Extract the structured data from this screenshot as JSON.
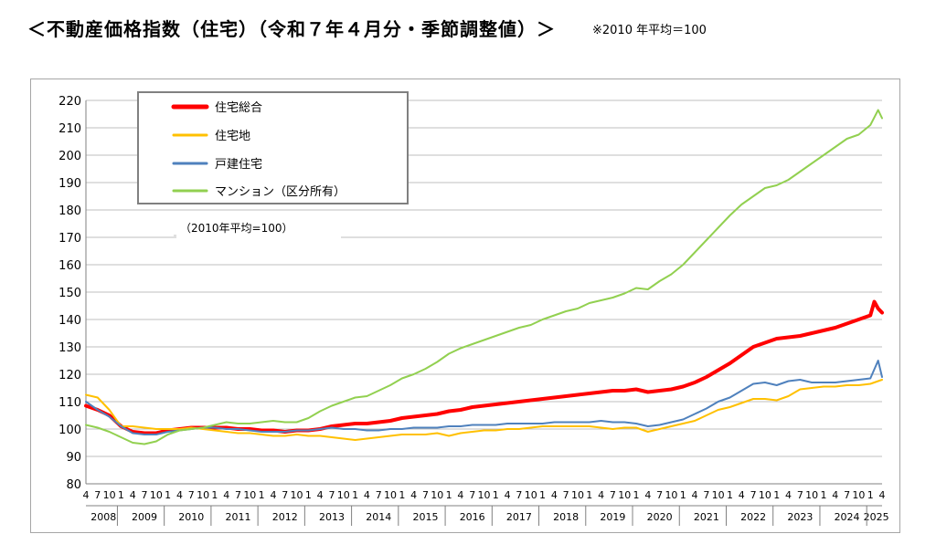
{
  "header": {
    "title": "＜不動産価格指数（住宅）（令和７年４月分・季節調整値）＞",
    "note": "※2010 年平均＝100"
  },
  "colors": {
    "total": "#ff0000",
    "land": "#ffc000",
    "detached": "#4f81bd",
    "condo": "#92d050",
    "grid": "#bfbfbf",
    "axis": "#808080"
  },
  "chart_data": {
    "type": "line",
    "title": "",
    "xlabel": "",
    "ylabel": "",
    "annotation": "（2010年平均=100）",
    "ylim": [
      80,
      220
    ],
    "yticks": [
      80,
      90,
      100,
      110,
      120,
      130,
      140,
      150,
      160,
      170,
      180,
      190,
      200,
      210,
      220
    ],
    "grid": "horizontal",
    "legend_position": "top-left",
    "x_start": "2008-04",
    "x_end": "2025-04",
    "month_tick_labels": [
      "4",
      "7",
      "10",
      "1"
    ],
    "years": [
      "2008",
      "2009",
      "2010",
      "2011",
      "2012",
      "2013",
      "2014",
      "2015",
      "2016",
      "2017",
      "2018",
      "2019",
      "2020",
      "2021",
      "2022",
      "2023",
      "2024",
      "2025"
    ],
    "series": [
      {
        "name": "住宅総合",
        "color_key": "total",
        "width": 4,
        "points": [
          [
            "2008-04",
            108.5
          ],
          [
            "2008-07",
            107
          ],
          [
            "2008-10",
            105
          ],
          [
            "2009-01",
            101
          ],
          [
            "2009-04",
            99
          ],
          [
            "2009-07",
            98.5
          ],
          [
            "2009-10",
            98.5
          ],
          [
            "2010-01",
            99.5
          ],
          [
            "2010-04",
            100
          ],
          [
            "2010-07",
            100.5
          ],
          [
            "2010-10",
            100.5
          ],
          [
            "2011-01",
            100.5
          ],
          [
            "2011-04",
            100.5
          ],
          [
            "2011-07",
            100
          ],
          [
            "2011-10",
            100
          ],
          [
            "2012-01",
            99.5
          ],
          [
            "2012-04",
            99.5
          ],
          [
            "2012-07",
            99
          ],
          [
            "2012-10",
            99.5
          ],
          [
            "2013-01",
            99.5
          ],
          [
            "2013-04",
            100
          ],
          [
            "2013-07",
            101
          ],
          [
            "2013-10",
            101.5
          ],
          [
            "2014-01",
            102
          ],
          [
            "2014-04",
            102
          ],
          [
            "2014-07",
            102.5
          ],
          [
            "2014-10",
            103
          ],
          [
            "2015-01",
            104
          ],
          [
            "2015-04",
            104.5
          ],
          [
            "2015-07",
            105
          ],
          [
            "2015-10",
            105.5
          ],
          [
            "2016-01",
            106.5
          ],
          [
            "2016-04",
            107
          ],
          [
            "2016-07",
            108
          ],
          [
            "2016-10",
            108.5
          ],
          [
            "2017-01",
            109
          ],
          [
            "2017-04",
            109.5
          ],
          [
            "2017-07",
            110
          ],
          [
            "2017-10",
            110.5
          ],
          [
            "2018-01",
            111
          ],
          [
            "2018-04",
            111.5
          ],
          [
            "2018-07",
            112
          ],
          [
            "2018-10",
            112.5
          ],
          [
            "2019-01",
            113
          ],
          [
            "2019-04",
            113.5
          ],
          [
            "2019-07",
            114
          ],
          [
            "2019-10",
            114
          ],
          [
            "2020-01",
            114.5
          ],
          [
            "2020-04",
            113.5
          ],
          [
            "2020-07",
            114
          ],
          [
            "2020-10",
            114.5
          ],
          [
            "2021-01",
            115.5
          ],
          [
            "2021-04",
            117
          ],
          [
            "2021-07",
            119
          ],
          [
            "2021-10",
            121.5
          ],
          [
            "2022-01",
            124
          ],
          [
            "2022-04",
            127
          ],
          [
            "2022-07",
            130
          ],
          [
            "2022-10",
            131.5
          ],
          [
            "2023-01",
            133
          ],
          [
            "2023-04",
            133.5
          ],
          [
            "2023-07",
            134
          ],
          [
            "2023-10",
            135
          ],
          [
            "2024-01",
            136
          ],
          [
            "2024-04",
            137
          ],
          [
            "2024-07",
            138.5
          ],
          [
            "2024-10",
            140
          ],
          [
            "2025-01",
            141.5
          ],
          [
            "2025-02",
            146.5
          ],
          [
            "2025-03",
            144
          ],
          [
            "2025-04",
            142.5
          ]
        ]
      },
      {
        "name": "住宅地",
        "color_key": "land",
        "width": 2,
        "points": [
          [
            "2008-04",
            112.5
          ],
          [
            "2008-07",
            111.5
          ],
          [
            "2008-10",
            107
          ],
          [
            "2009-01",
            101
          ],
          [
            "2009-04",
            101
          ],
          [
            "2009-07",
            100.5
          ],
          [
            "2009-10",
            100
          ],
          [
            "2010-01",
            100
          ],
          [
            "2010-04",
            100
          ],
          [
            "2010-07",
            100.5
          ],
          [
            "2010-10",
            100
          ],
          [
            "2011-01",
            99.5
          ],
          [
            "2011-04",
            99
          ],
          [
            "2011-07",
            98.5
          ],
          [
            "2011-10",
            98.5
          ],
          [
            "2012-01",
            98
          ],
          [
            "2012-04",
            97.5
          ],
          [
            "2012-07",
            97.5
          ],
          [
            "2012-10",
            98
          ],
          [
            "2013-01",
            97.5
          ],
          [
            "2013-04",
            97.5
          ],
          [
            "2013-07",
            97
          ],
          [
            "2013-10",
            96.5
          ],
          [
            "2014-01",
            96
          ],
          [
            "2014-04",
            96.5
          ],
          [
            "2014-07",
            97
          ],
          [
            "2014-10",
            97.5
          ],
          [
            "2015-01",
            98
          ],
          [
            "2015-04",
            98
          ],
          [
            "2015-07",
            98
          ],
          [
            "2015-10",
            98.5
          ],
          [
            "2016-01",
            97.5
          ],
          [
            "2016-04",
            98.5
          ],
          [
            "2016-07",
            99
          ],
          [
            "2016-10",
            99.5
          ],
          [
            "2017-01",
            99.5
          ],
          [
            "2017-04",
            100
          ],
          [
            "2017-07",
            100
          ],
          [
            "2017-10",
            100.5
          ],
          [
            "2018-01",
            101
          ],
          [
            "2018-04",
            101
          ],
          [
            "2018-07",
            101
          ],
          [
            "2018-10",
            101
          ],
          [
            "2019-01",
            101
          ],
          [
            "2019-04",
            100.5
          ],
          [
            "2019-07",
            100
          ],
          [
            "2019-10",
            100.5
          ],
          [
            "2020-01",
            100.5
          ],
          [
            "2020-04",
            99
          ],
          [
            "2020-07",
            100
          ],
          [
            "2020-10",
            101
          ],
          [
            "2021-01",
            102
          ],
          [
            "2021-04",
            103
          ],
          [
            "2021-07",
            105
          ],
          [
            "2021-10",
            107
          ],
          [
            "2022-01",
            108
          ],
          [
            "2022-04",
            109.5
          ],
          [
            "2022-07",
            111
          ],
          [
            "2022-10",
            111
          ],
          [
            "2023-01",
            110.5
          ],
          [
            "2023-04",
            112
          ],
          [
            "2023-07",
            114.5
          ],
          [
            "2023-10",
            115
          ],
          [
            "2024-01",
            115.5
          ],
          [
            "2024-04",
            115.5
          ],
          [
            "2024-07",
            116
          ],
          [
            "2024-10",
            116
          ],
          [
            "2025-01",
            116.5
          ],
          [
            "2025-04",
            118
          ]
        ]
      },
      {
        "name": "戸建住宅",
        "color_key": "detached",
        "width": 2,
        "points": [
          [
            "2008-04",
            110
          ],
          [
            "2008-07",
            107
          ],
          [
            "2008-10",
            104.5
          ],
          [
            "2009-01",
            101
          ],
          [
            "2009-04",
            98.5
          ],
          [
            "2009-07",
            98
          ],
          [
            "2009-10",
            98
          ],
          [
            "2010-01",
            99
          ],
          [
            "2010-04",
            99.5
          ],
          [
            "2010-07",
            100
          ],
          [
            "2010-10",
            100.5
          ],
          [
            "2011-01",
            100.5
          ],
          [
            "2011-04",
            100
          ],
          [
            "2011-07",
            100
          ],
          [
            "2011-10",
            99.5
          ],
          [
            "2012-01",
            99
          ],
          [
            "2012-04",
            99
          ],
          [
            "2012-07",
            99
          ],
          [
            "2012-10",
            99.5
          ],
          [
            "2013-01",
            99.5
          ],
          [
            "2013-04",
            100
          ],
          [
            "2013-07",
            100.5
          ],
          [
            "2013-10",
            100
          ],
          [
            "2014-01",
            100
          ],
          [
            "2014-04",
            99.5
          ],
          [
            "2014-07",
            99.5
          ],
          [
            "2014-10",
            100
          ],
          [
            "2015-01",
            100
          ],
          [
            "2015-04",
            100.5
          ],
          [
            "2015-07",
            100.5
          ],
          [
            "2015-10",
            100.5
          ],
          [
            "2016-01",
            101
          ],
          [
            "2016-04",
            101
          ],
          [
            "2016-07",
            101.5
          ],
          [
            "2016-10",
            101.5
          ],
          [
            "2017-01",
            101.5
          ],
          [
            "2017-04",
            102
          ],
          [
            "2017-07",
            102
          ],
          [
            "2017-10",
            102
          ],
          [
            "2018-01",
            102
          ],
          [
            "2018-04",
            102.5
          ],
          [
            "2018-07",
            102.5
          ],
          [
            "2018-10",
            102.5
          ],
          [
            "2019-01",
            102.5
          ],
          [
            "2019-04",
            103
          ],
          [
            "2019-07",
            102.5
          ],
          [
            "2019-10",
            102.5
          ],
          [
            "2020-01",
            102
          ],
          [
            "2020-04",
            101
          ],
          [
            "2020-07",
            101.5
          ],
          [
            "2020-10",
            102.5
          ],
          [
            "2021-01",
            103.5
          ],
          [
            "2021-04",
            105.5
          ],
          [
            "2021-07",
            107.5
          ],
          [
            "2021-10",
            110
          ],
          [
            "2022-01",
            111.5
          ],
          [
            "2022-04",
            114
          ],
          [
            "2022-07",
            116.5
          ],
          [
            "2022-10",
            117
          ],
          [
            "2023-01",
            116
          ],
          [
            "2023-04",
            117.5
          ],
          [
            "2023-07",
            118
          ],
          [
            "2023-10",
            117
          ],
          [
            "2024-01",
            117
          ],
          [
            "2024-04",
            117
          ],
          [
            "2024-07",
            117.5
          ],
          [
            "2024-10",
            118
          ],
          [
            "2025-01",
            118.5
          ],
          [
            "2025-03",
            125
          ],
          [
            "2025-04",
            119
          ]
        ]
      },
      {
        "name": "マンション（区分所有）",
        "color_key": "condo",
        "width": 2,
        "points": [
          [
            "2008-04",
            101.5
          ],
          [
            "2008-07",
            100.5
          ],
          [
            "2008-10",
            99
          ],
          [
            "2009-01",
            97
          ],
          [
            "2009-04",
            95
          ],
          [
            "2009-07",
            94.5
          ],
          [
            "2009-10",
            95.5
          ],
          [
            "2010-01",
            98
          ],
          [
            "2010-04",
            99.5
          ],
          [
            "2010-07",
            100
          ],
          [
            "2010-10",
            100.5
          ],
          [
            "2011-01",
            101.5
          ],
          [
            "2011-04",
            102.5
          ],
          [
            "2011-07",
            102
          ],
          [
            "2011-10",
            102
          ],
          [
            "2012-01",
            102.5
          ],
          [
            "2012-04",
            103
          ],
          [
            "2012-07",
            102.5
          ],
          [
            "2012-10",
            102.5
          ],
          [
            "2013-01",
            104
          ],
          [
            "2013-04",
            106.5
          ],
          [
            "2013-07",
            108.5
          ],
          [
            "2013-10",
            110
          ],
          [
            "2014-01",
            111.5
          ],
          [
            "2014-04",
            112
          ],
          [
            "2014-07",
            114
          ],
          [
            "2014-10",
            116
          ],
          [
            "2015-01",
            118.5
          ],
          [
            "2015-04",
            120
          ],
          [
            "2015-07",
            122
          ],
          [
            "2015-10",
            124.5
          ],
          [
            "2016-01",
            127.5
          ],
          [
            "2016-04",
            129.5
          ],
          [
            "2016-07",
            131
          ],
          [
            "2016-10",
            132.5
          ],
          [
            "2017-01",
            134
          ],
          [
            "2017-04",
            135.5
          ],
          [
            "2017-07",
            137
          ],
          [
            "2017-10",
            138
          ],
          [
            "2018-01",
            140
          ],
          [
            "2018-04",
            141.5
          ],
          [
            "2018-07",
            143
          ],
          [
            "2018-10",
            144
          ],
          [
            "2019-01",
            146
          ],
          [
            "2019-04",
            147
          ],
          [
            "2019-07",
            148
          ],
          [
            "2019-10",
            149.5
          ],
          [
            "2020-01",
            151.5
          ],
          [
            "2020-04",
            151
          ],
          [
            "2020-07",
            154
          ],
          [
            "2020-10",
            156.5
          ],
          [
            "2021-01",
            160
          ],
          [
            "2021-04",
            164.5
          ],
          [
            "2021-07",
            169
          ],
          [
            "2021-10",
            173.5
          ],
          [
            "2022-01",
            178
          ],
          [
            "2022-04",
            182
          ],
          [
            "2022-07",
            185
          ],
          [
            "2022-10",
            188
          ],
          [
            "2023-01",
            189
          ],
          [
            "2023-04",
            191
          ],
          [
            "2023-07",
            194
          ],
          [
            "2023-10",
            197
          ],
          [
            "2024-01",
            200
          ],
          [
            "2024-04",
            203
          ],
          [
            "2024-07",
            206
          ],
          [
            "2024-10",
            207.5
          ],
          [
            "2025-01",
            211
          ],
          [
            "2025-03",
            216.5
          ],
          [
            "2025-04",
            213.5
          ]
        ]
      }
    ]
  }
}
